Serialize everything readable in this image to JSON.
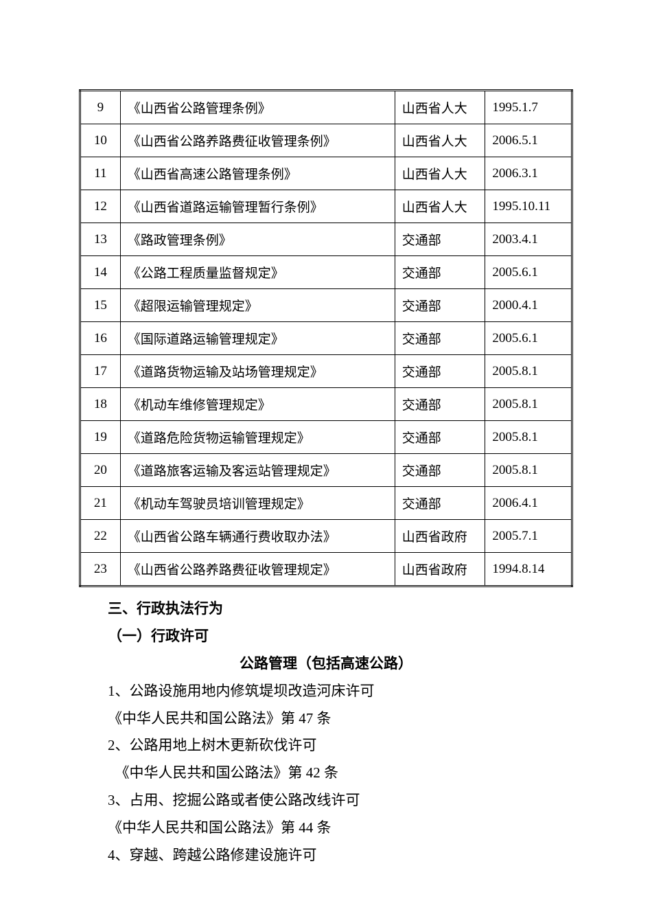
{
  "table": {
    "rows": [
      {
        "num": "9",
        "title": "《山西省公路管理条例》",
        "authority": "山西省人大",
        "date": "1995.1.7"
      },
      {
        "num": "10",
        "title": "《山西省公路养路费征收管理条例》",
        "authority": "山西省人大",
        "date": "2006.5.1"
      },
      {
        "num": "11",
        "title": "《山西省高速公路管理条例》",
        "authority": "山西省人大",
        "date": "2006.3.1"
      },
      {
        "num": "12",
        "title": "《山西省道路运输管理暂行条例》",
        "authority": "山西省人大",
        "date": "1995.10.11"
      },
      {
        "num": "13",
        "title": "《路政管理条例》",
        "authority": "交通部",
        "date": "2003.4.1"
      },
      {
        "num": "14",
        "title": "《公路工程质量监督规定》",
        "authority": "交通部",
        "date": "2005.6.1"
      },
      {
        "num": "15",
        "title": "《超限运输管理规定》",
        "authority": "交通部",
        "date": "2000.4.1"
      },
      {
        "num": "16",
        "title": "《国际道路运输管理规定》",
        "authority": "交通部",
        "date": "2005.6.1"
      },
      {
        "num": "17",
        "title": "《道路货物运输及站场管理规定》",
        "authority": "交通部",
        "date": "2005.8.1"
      },
      {
        "num": "18",
        "title": "《机动车维修管理规定》",
        "authority": "交通部",
        "date": "2005.8.1"
      },
      {
        "num": "19",
        "title": "《道路危险货物运输管理规定》",
        "authority": "交通部",
        "date": "2005.8.1"
      },
      {
        "num": "20",
        "title": "《道路旅客运输及客运站管理规定》",
        "authority": "交通部",
        "date": "2005.8.1"
      },
      {
        "num": "21",
        "title": "《机动车驾驶员培训管理规定》",
        "authority": "交通部",
        "date": "2006.4.1"
      },
      {
        "num": "22",
        "title": "《山西省公路车辆通行费收取办法》",
        "authority": "山西省政府",
        "date": "2005.7.1"
      },
      {
        "num": "23",
        "title": "《山西省公路养路费征收管理规定》",
        "authority": "山西省政府",
        "date": "1994.8.14"
      }
    ]
  },
  "section": {
    "heading1": "三、行政执法行为",
    "heading2": "（一）行政许可",
    "heading3": "公路管理（包括高速公路）",
    "items": [
      {
        "text": "1、公路设施用地内修筑堤坝改造河床许可",
        "sub": "《中华人民共和国公路法》第 47 条"
      },
      {
        "text": "2、公路用地上树木更新砍伐许可",
        "sub": "　《中华人民共和国公路法》第 42 条"
      },
      {
        "text": "3、占用、挖掘公路或者使公路改线许可",
        "sub": "《中华人民共和国公路法》第 44 条"
      },
      {
        "text": "4、穿越、跨越公路修建设施许可",
        "sub": ""
      }
    ]
  }
}
